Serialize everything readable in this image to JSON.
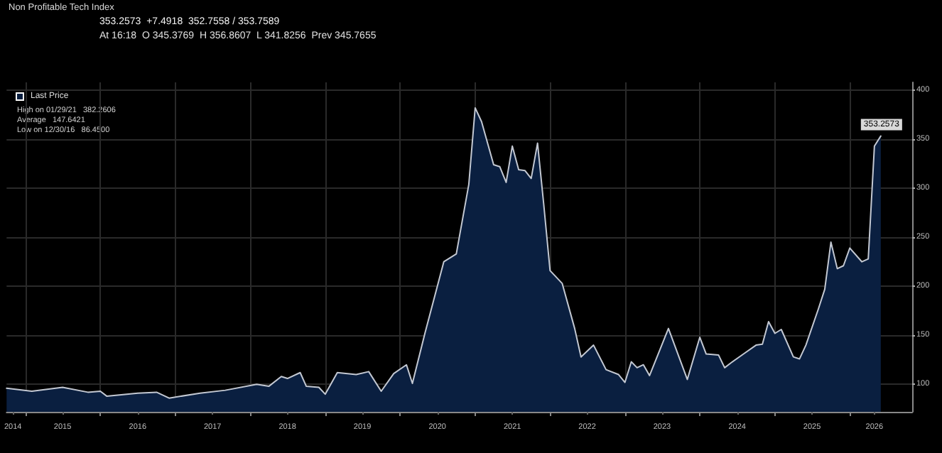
{
  "chart_data": {
    "type": "area",
    "title": "Non Profitable Tech Index",
    "annotations": [
      "353.2573  +7.4918  352.7558 / 353.7589",
      "At 16:18  O 345.3769  H 356.8607  L 341.8256  Prev 345.7655",
      "High on 01/29/21   382.2606",
      "Average   147.6421",
      "Low on 12/30/16   86.4500"
    ],
    "x": [
      "2014-10",
      "2015-02",
      "2015-07",
      "2015-11",
      "2016-01",
      "2016-02",
      "2016-07",
      "2016-10",
      "2016-12",
      "2017-05",
      "2017-09",
      "2018-02",
      "2018-04",
      "2018-06",
      "2018-07",
      "2018-09",
      "2018-10",
      "2018-12",
      "2019-01",
      "2019-03",
      "2019-06",
      "2019-08",
      "2019-10",
      "2019-12",
      "2020-02",
      "2020-03",
      "2020-05",
      "2020-08",
      "2020-10",
      "2020-12",
      "2021-01",
      "2021-02",
      "2021-04",
      "2021-05",
      "2021-06",
      "2021-07",
      "2021-08",
      "2021-09",
      "2021-10",
      "2021-11",
      "2021-12",
      "2022-01",
      "2022-03",
      "2022-05",
      "2022-06",
      "2022-08",
      "2022-10",
      "2022-12",
      "2023-01",
      "2023-02",
      "2023-03",
      "2023-04",
      "2023-05",
      "2023-08",
      "2023-11",
      "2024-01",
      "2024-02",
      "2024-04",
      "2024-05",
      "2024-06",
      "2024-08",
      "2024-10",
      "2024-11",
      "2024-12",
      "2025-01",
      "2025-02",
      "2025-04",
      "2025-05",
      "2025-06",
      "2025-08",
      "2025-09",
      "2025-10",
      "2025-11",
      "2025-12",
      "2026-01",
      "2026-03",
      "2026-04",
      "2026-05",
      "2026-06"
    ],
    "series": [
      {
        "name": "Last Price",
        "color": "#0a1f40",
        "values": [
          96,
          93,
          97,
          92,
          93,
          88,
          91,
          92,
          86,
          91,
          94,
          100,
          98,
          108,
          106,
          112,
          98,
          97,
          90,
          112,
          110,
          113,
          93,
          111,
          120,
          101,
          152,
          225,
          233,
          304,
          382,
          368,
          324,
          322,
          306,
          343,
          319,
          318,
          310,
          346,
          284,
          216,
          203,
          157,
          128,
          140,
          115,
          110,
          102,
          123,
          117,
          120,
          109,
          157,
          105,
          148,
          131,
          130,
          117,
          122,
          131,
          140,
          141,
          164,
          152,
          156,
          128,
          126,
          140,
          177,
          197,
          245,
          218,
          221,
          239,
          225,
          228,
          343,
          353.2573
        ],
        "value_labels": [
          null,
          null,
          null,
          null,
          null,
          null,
          null,
          null,
          null,
          null,
          null,
          null,
          null,
          null,
          null,
          null,
          null,
          null,
          null,
          null,
          null,
          null,
          null,
          null,
          null,
          null,
          null,
          null,
          null,
          null,
          null,
          null,
          null,
          null,
          null,
          null,
          null,
          null,
          null,
          null,
          null,
          null,
          null,
          null,
          null,
          null,
          null,
          null,
          null,
          null,
          null,
          null,
          null,
          null,
          null,
          null,
          null,
          null,
          null,
          null,
          null,
          null,
          null,
          null,
          null,
          null,
          null,
          null,
          null,
          null,
          null,
          null,
          null,
          null,
          null,
          null,
          null,
          null,
          "353.2573"
        ]
      }
    ],
    "xlim": [
      "2014-10",
      "2026-11"
    ],
    "xticks": [
      {
        "value": "2015-01",
        "label": null
      },
      {
        "value": "2016-01",
        "label": null
      },
      {
        "value": "2017-01",
        "label": null
      },
      {
        "value": "2018-01",
        "label": null
      },
      {
        "value": "2019-01",
        "label": null
      },
      {
        "value": "2020-01",
        "label": null
      },
      {
        "value": "2021-01",
        "label": null
      },
      {
        "value": "2022-01",
        "label": null
      },
      {
        "value": "2023-01",
        "label": null
      },
      {
        "value": "2024-01",
        "label": null
      },
      {
        "value": "2025-01",
        "label": null
      },
      {
        "value": "2026-01",
        "label": null
      },
      {
        "value": "2014-11",
        "label": "2014"
      },
      {
        "value": "2015-07",
        "label": "2015"
      },
      {
        "value": "2016-07",
        "label": "2016"
      },
      {
        "value": "2017-07",
        "label": "2017"
      },
      {
        "value": "2018-07",
        "label": "2018"
      },
      {
        "value": "2019-07",
        "label": "2019"
      },
      {
        "value": "2020-07",
        "label": "2020"
      },
      {
        "value": "2021-07",
        "label": "2021"
      },
      {
        "value": "2022-07",
        "label": "2022"
      },
      {
        "value": "2023-07",
        "label": "2023"
      },
      {
        "value": "2024-07",
        "label": "2024"
      },
      {
        "value": "2025-07",
        "label": "2025"
      },
      {
        "value": "2026-05",
        "label": "2026"
      }
    ],
    "ylim": [
      72,
      408
    ],
    "yticks": [
      100,
      150,
      200,
      250,
      300,
      350,
      400
    ],
    "grid": true,
    "legend": "top left"
  }
}
